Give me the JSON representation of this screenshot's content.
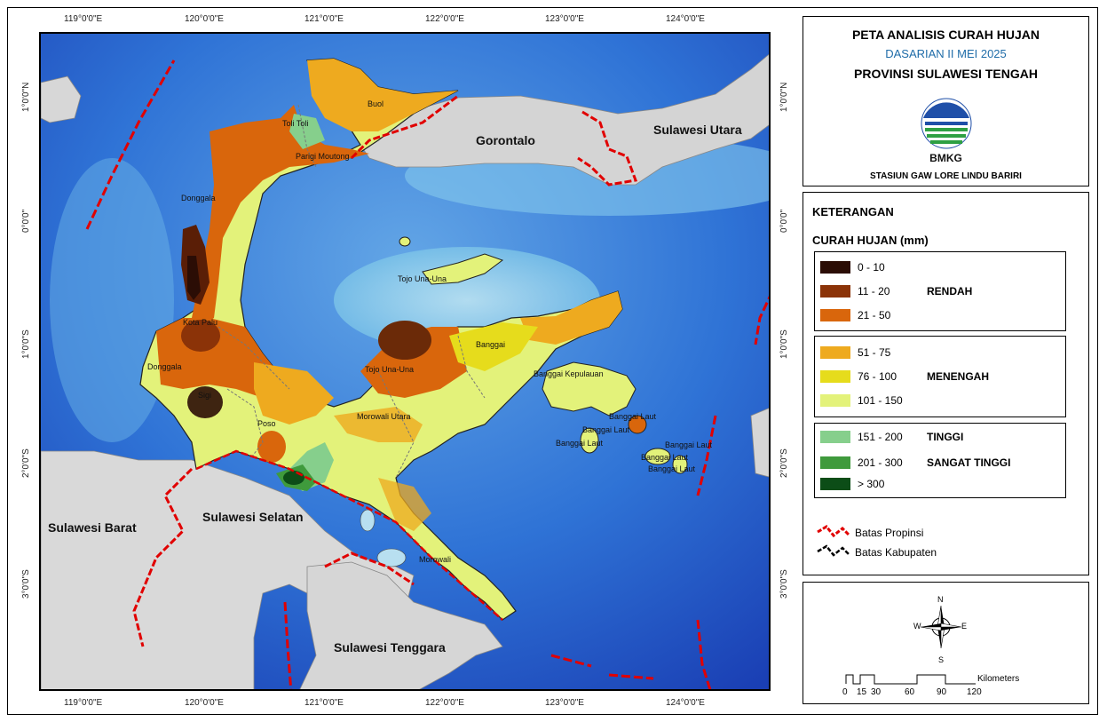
{
  "title": {
    "main": "PETA ANALISIS CURAH HUJAN",
    "period": "DASARIAN II MEI 2025",
    "province": "PROVINSI SULAWESI TENGAH",
    "logo_text": "BMKG",
    "station": "STASIUN GAW LORE LINDU BARIRI"
  },
  "legend": {
    "heading": "KETERANGAN",
    "rain_heading": "CURAH HUJAN (mm)",
    "groups": [
      {
        "name": "RENDAH",
        "items": [
          {
            "label": "0 - 10",
            "color": "#2b0d05"
          },
          {
            "label": "11 - 20",
            "color": "#8b3308"
          },
          {
            "label": "21 - 50",
            "color": "#d9660c"
          }
        ]
      },
      {
        "name": "MENENGAH",
        "items": [
          {
            "label": "51 - 75",
            "color": "#eeaa1f"
          },
          {
            "label": "76 - 100",
            "color": "#e6dc1c"
          },
          {
            "label": "101 - 150",
            "color": "#e3f27a"
          }
        ]
      },
      {
        "name_a": "TINGGI",
        "name_b": "SANGAT TINGGI",
        "items": [
          {
            "label": "151 - 200",
            "color": "#86cf8c"
          },
          {
            "label": "201 - 300",
            "color": "#3f9a3c"
          },
          {
            "label": "> 300",
            "color": "#0c4d17"
          }
        ]
      }
    ],
    "boundary_prov": "Batas Propinsi",
    "boundary_kab": "Batas Kabupaten"
  },
  "compass": {
    "n": "N",
    "s": "S",
    "e": "E",
    "w": "W"
  },
  "scale": {
    "unit": "Kilometers",
    "ticks": [
      "0",
      "15",
      "30",
      "60",
      "90",
      "120"
    ]
  },
  "axes": {
    "top": [
      "119°0'0\"E",
      "120°0'0\"E",
      "121°0'0\"E",
      "122°0'0\"E",
      "123°0'0\"E",
      "124°0'0\"E"
    ],
    "bottom": [
      "119°0'0\"E",
      "120°0'0\"E",
      "121°0'0\"E",
      "122°0'0\"E",
      "123°0'0\"E",
      "124°0'0\"E"
    ],
    "side": [
      "1°0'0\"N",
      "0°0'0\"",
      "1°0'0\"S",
      "2°0'0\"S",
      "3°0'0\"S"
    ]
  },
  "provinces": {
    "gorontalo": "Gorontalo",
    "sulut": "Sulawesi Utara",
    "sulbar": "Sulawesi Barat",
    "sulsel": "Sulawesi Selatan",
    "sultra": "Sulawesi Tenggara"
  },
  "regencies": {
    "buol": "Buol",
    "tolitoli": "Toli Toli",
    "parigi": "Parigi Moutong",
    "donggala_n": "Donggala",
    "palu": "Kota Palu",
    "donggala": "Donggala",
    "sigi": "Sigi",
    "poso": "Poso",
    "tojo": "Tojo Una-Una",
    "tojo_islands": "Tojo Una-Una",
    "banggai": "Banggai",
    "morut": "Morowali Utara",
    "morowali": "Morowali",
    "bangkep": "Banggai Kepulauan",
    "bl1": "Banggai Laut",
    "bl2": "Banggai Laut",
    "bl3": "Banggai Laut",
    "bl4": "Banggai Laut",
    "bl5": "Banggai Laut",
    "bl6": "Banggai Laut"
  }
}
